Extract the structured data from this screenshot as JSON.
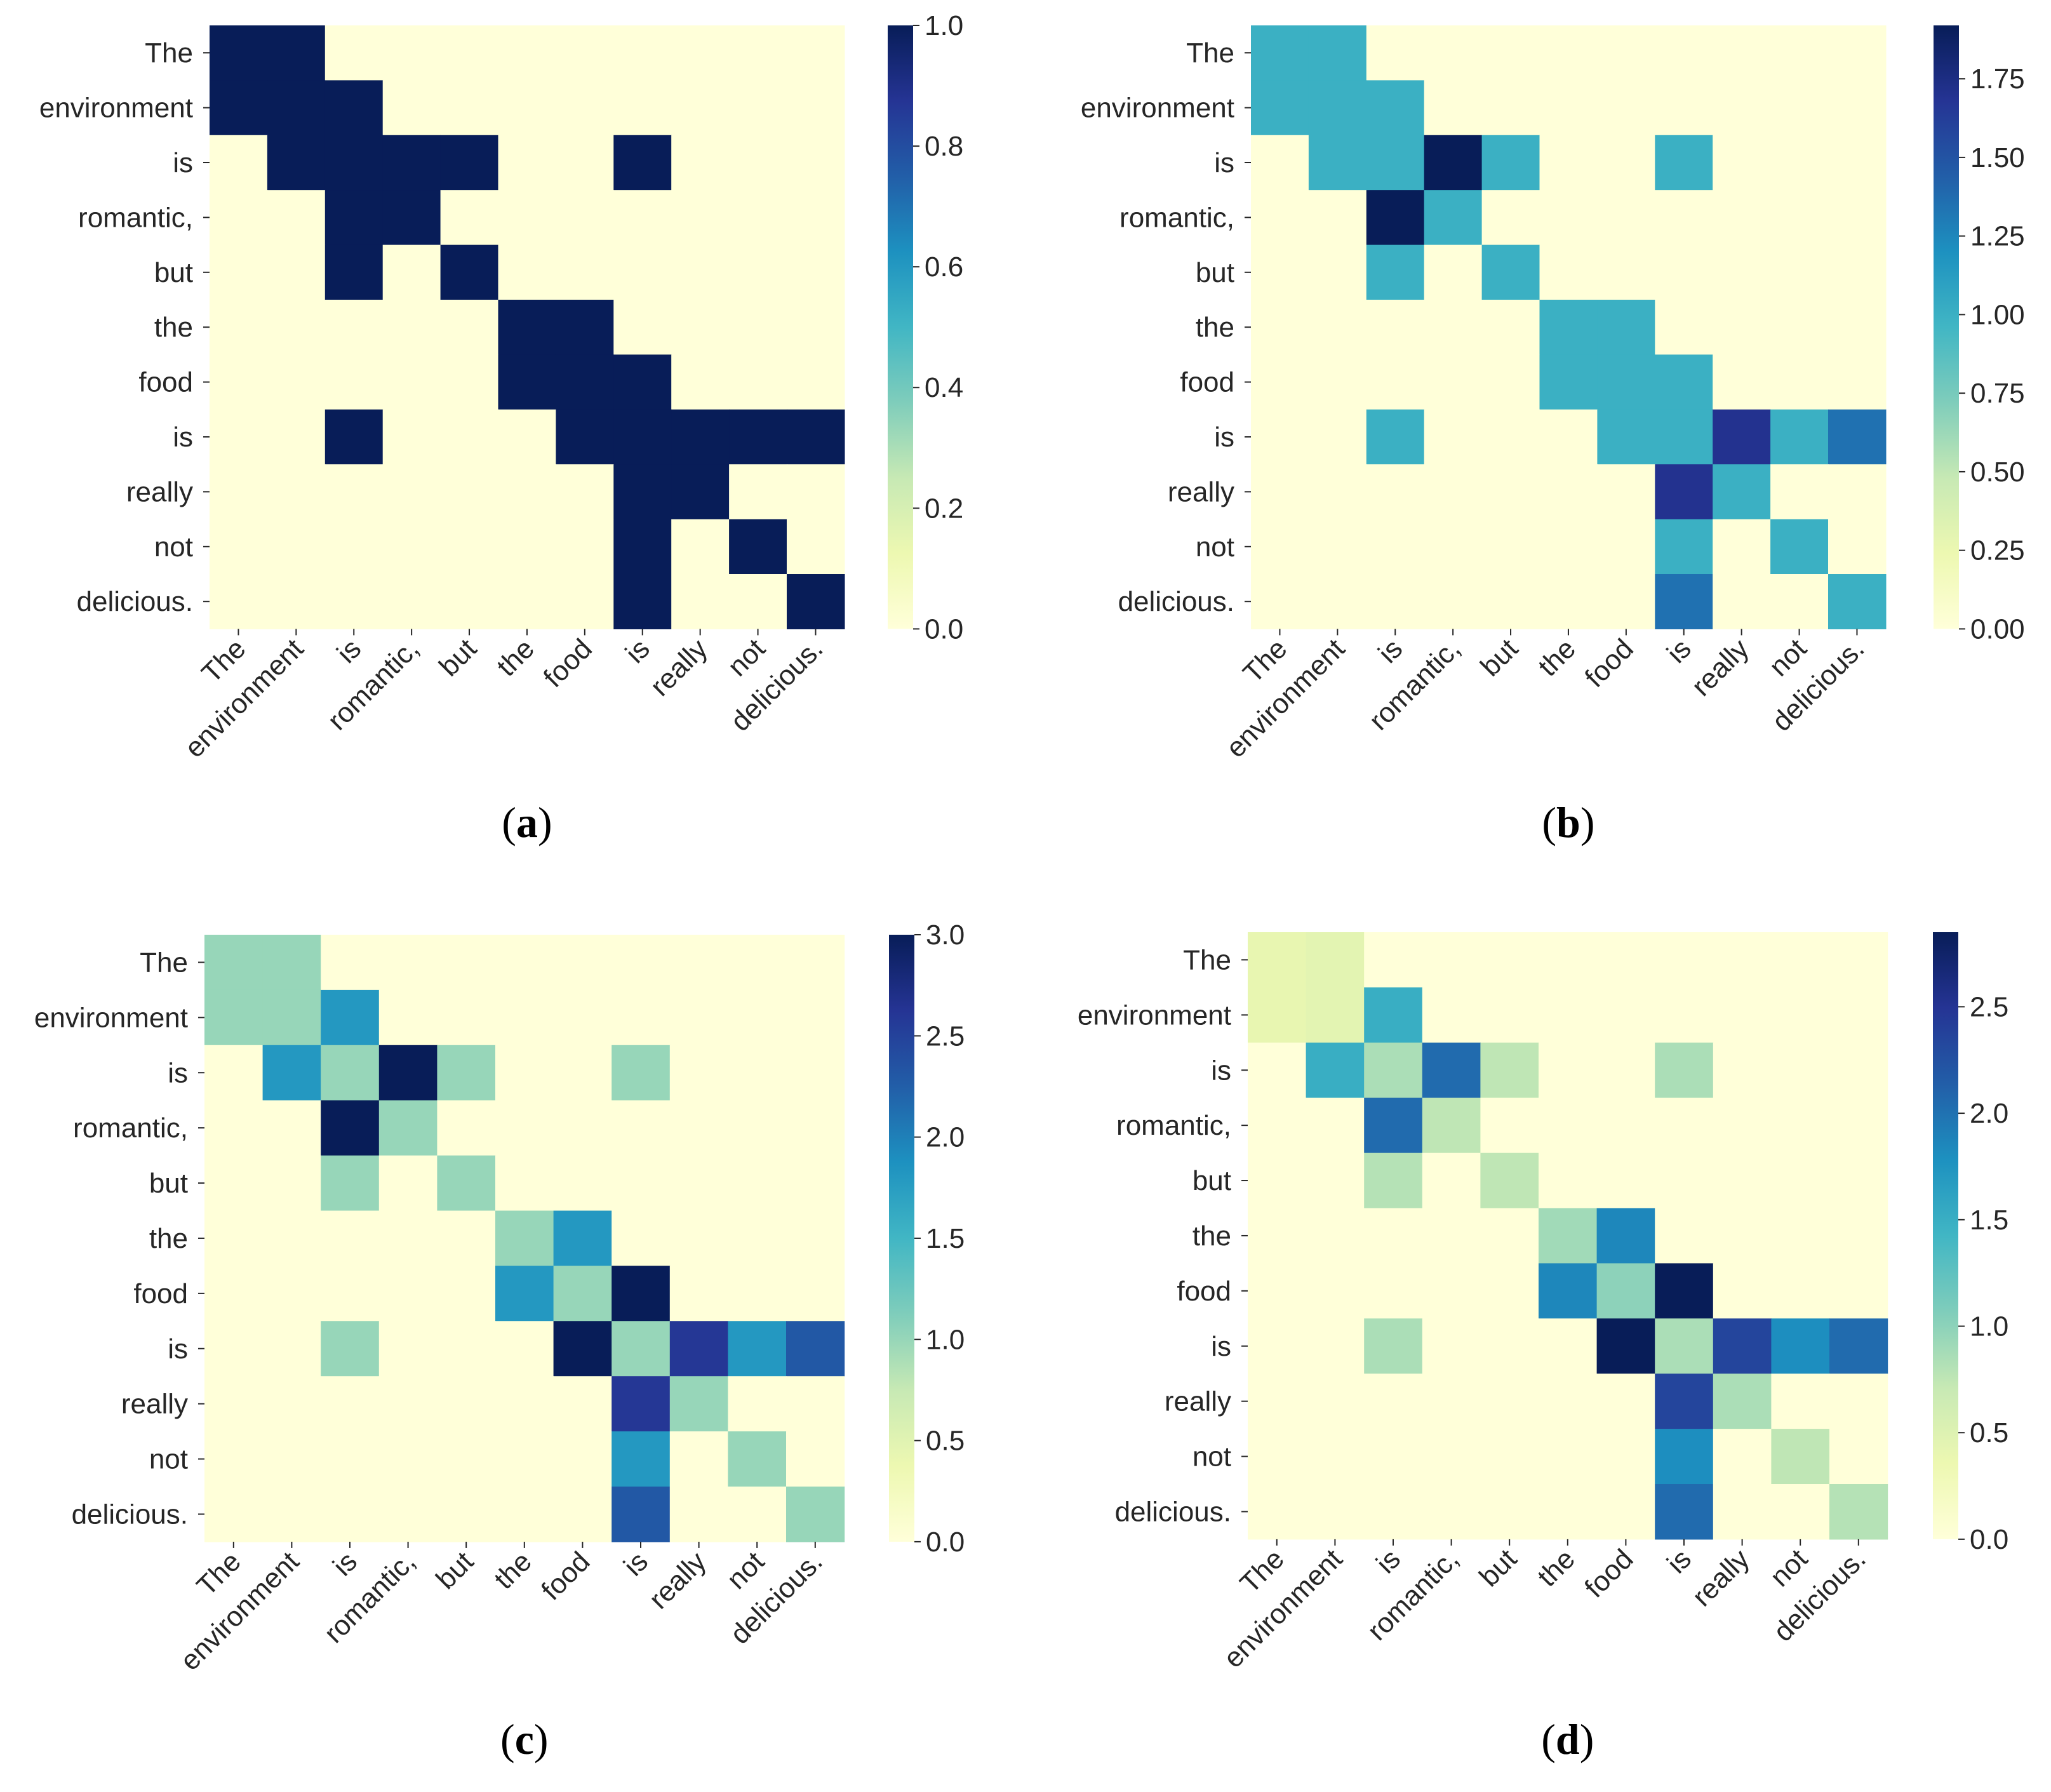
{
  "figure": {
    "panel_labels": [
      "(a)",
      "(b)",
      "(c)",
      "(d)"
    ]
  },
  "colormap": {
    "name": "YlGnBu",
    "stops": [
      "#ffffd9",
      "#edf8b1",
      "#c7e9b4",
      "#7fcdbb",
      "#41b6c4",
      "#1d91c0",
      "#225ea8",
      "#253494",
      "#081d58"
    ]
  },
  "chart_data": [
    {
      "type": "heatmap",
      "title": "(a)",
      "rows": [
        "The",
        "environment",
        "is",
        "romantic,",
        "but",
        "the",
        "food",
        "is",
        "really",
        "not",
        "delicious."
      ],
      "columns": [
        "The",
        "environment",
        "is",
        "romantic,",
        "but",
        "the",
        "food",
        "is",
        "really",
        "not",
        "delicious."
      ],
      "values": [
        [
          1,
          1,
          0,
          0,
          0,
          0,
          0,
          0,
          0,
          0,
          0
        ],
        [
          1,
          1,
          1,
          0,
          0,
          0,
          0,
          0,
          0,
          0,
          0
        ],
        [
          0,
          1,
          1,
          1,
          1,
          0,
          0,
          1,
          0,
          0,
          0
        ],
        [
          0,
          0,
          1,
          1,
          0,
          0,
          0,
          0,
          0,
          0,
          0
        ],
        [
          0,
          0,
          1,
          0,
          1,
          0,
          0,
          0,
          0,
          0,
          0
        ],
        [
          0,
          0,
          0,
          0,
          0,
          1,
          1,
          0,
          0,
          0,
          0
        ],
        [
          0,
          0,
          0,
          0,
          0,
          1,
          1,
          1,
          0,
          0,
          0
        ],
        [
          0,
          0,
          1,
          0,
          0,
          0,
          1,
          1,
          1,
          1,
          1
        ],
        [
          0,
          0,
          0,
          0,
          0,
          0,
          0,
          1,
          1,
          0,
          0
        ],
        [
          0,
          0,
          0,
          0,
          0,
          0,
          0,
          1,
          0,
          1,
          0
        ],
        [
          0,
          0,
          0,
          0,
          0,
          0,
          0,
          1,
          0,
          0,
          1
        ]
      ],
      "vmin": 0,
      "vmax": 1.0,
      "colorbar_ticks": [
        0.0,
        0.2,
        0.4,
        0.6,
        0.8,
        1.0
      ],
      "colorbar_tick_labels": [
        "0.0",
        "0.2",
        "0.4",
        "0.6",
        "0.8",
        "1.0"
      ]
    },
    {
      "type": "heatmap",
      "title": "(b)",
      "rows": [
        "The",
        "environment",
        "is",
        "romantic,",
        "but",
        "the",
        "food",
        "is",
        "really",
        "not",
        "delicious."
      ],
      "columns": [
        "The",
        "environment",
        "is",
        "romantic,",
        "but",
        "the",
        "food",
        "is",
        "really",
        "not",
        "delicious."
      ],
      "values": [
        [
          1,
          1,
          0,
          0,
          0,
          0,
          0,
          0,
          0,
          0,
          0
        ],
        [
          1,
          1,
          1,
          0,
          0,
          0,
          0,
          0,
          0,
          0,
          0
        ],
        [
          0,
          1,
          1,
          1.92,
          1,
          0,
          0,
          1,
          0,
          0,
          0
        ],
        [
          0,
          0,
          1.92,
          1,
          0,
          0,
          0,
          0,
          0,
          0,
          0
        ],
        [
          0,
          0,
          1,
          0,
          1,
          0,
          0,
          0,
          0,
          0,
          0
        ],
        [
          0,
          0,
          0,
          0,
          0,
          1,
          1,
          0,
          0,
          0,
          0
        ],
        [
          0,
          0,
          0,
          0,
          0,
          1,
          1,
          1,
          0,
          0,
          0
        ],
        [
          0,
          0,
          1,
          0,
          0,
          0,
          1,
          1,
          1.7,
          1,
          1.35
        ],
        [
          0,
          0,
          0,
          0,
          0,
          0,
          0,
          1.7,
          1,
          0,
          0
        ],
        [
          0,
          0,
          0,
          0,
          0,
          0,
          0,
          1,
          0,
          1,
          0
        ],
        [
          0,
          0,
          0,
          0,
          0,
          0,
          0,
          1.35,
          0,
          0,
          1
        ]
      ],
      "vmin": 0,
      "vmax": 1.92,
      "colorbar_ticks": [
        0.0,
        0.25,
        0.5,
        0.75,
        1.0,
        1.25,
        1.5,
        1.75
      ],
      "colorbar_tick_labels": [
        "0.00",
        "0.25",
        "0.50",
        "0.75",
        "1.00",
        "1.25",
        "1.50",
        "1.75"
      ]
    },
    {
      "type": "heatmap",
      "title": "(c)",
      "rows": [
        "The",
        "environment",
        "is",
        "romantic,",
        "but",
        "the",
        "food",
        "is",
        "really",
        "not",
        "delicious."
      ],
      "columns": [
        "The",
        "environment",
        "is",
        "romantic,",
        "but",
        "the",
        "food",
        "is",
        "really",
        "not",
        "delicious."
      ],
      "values": [
        [
          1,
          1,
          0,
          0,
          0,
          0,
          0,
          0,
          0,
          0,
          0
        ],
        [
          1,
          1,
          1.8,
          0,
          0,
          0,
          0,
          0,
          0,
          0,
          0
        ],
        [
          0,
          1.8,
          1,
          3,
          1,
          0,
          0,
          1,
          0,
          0,
          0
        ],
        [
          0,
          0,
          3,
          1,
          0,
          0,
          0,
          0,
          0,
          0,
          0
        ],
        [
          0,
          0,
          1,
          0,
          1,
          0,
          0,
          0,
          0,
          0,
          0
        ],
        [
          0,
          0,
          0,
          0,
          0,
          1,
          1.8,
          0,
          0,
          0,
          0
        ],
        [
          0,
          0,
          0,
          0,
          0,
          1.8,
          1,
          3,
          0,
          0,
          0
        ],
        [
          0,
          0,
          1,
          0,
          0,
          0,
          3,
          1,
          2.6,
          1.8,
          2.3
        ],
        [
          0,
          0,
          0,
          0,
          0,
          0,
          0,
          2.6,
          1,
          0,
          0
        ],
        [
          0,
          0,
          0,
          0,
          0,
          0,
          0,
          1.8,
          0,
          1,
          0
        ],
        [
          0,
          0,
          0,
          0,
          0,
          0,
          0,
          2.3,
          0,
          0,
          1
        ]
      ],
      "vmin": 0,
      "vmax": 3.0,
      "colorbar_ticks": [
        0.0,
        0.5,
        1.0,
        1.5,
        2.0,
        2.5,
        3.0
      ],
      "colorbar_tick_labels": [
        "0.0",
        "0.5",
        "1.0",
        "1.5",
        "2.0",
        "2.5",
        "3.0"
      ]
    },
    {
      "type": "heatmap",
      "title": "(d)",
      "rows": [
        "The",
        "environment",
        "is",
        "romantic,",
        "but",
        "the",
        "food",
        "is",
        "really",
        "not",
        "delicious."
      ],
      "columns": [
        "The",
        "environment",
        "is",
        "romantic,",
        "but",
        "the",
        "food",
        "is",
        "really",
        "not",
        "delicious."
      ],
      "values": [
        [
          0.4,
          0.45,
          0,
          0,
          0,
          0,
          0,
          0,
          0,
          0,
          0
        ],
        [
          0.4,
          0.45,
          1.5,
          0,
          0,
          0,
          0,
          0,
          0,
          0,
          0
        ],
        [
          0,
          1.5,
          0.85,
          2.05,
          0.75,
          0,
          0,
          0.85,
          0,
          0,
          0
        ],
        [
          0,
          0,
          2.05,
          0.75,
          0,
          0,
          0,
          0,
          0,
          0,
          0
        ],
        [
          0,
          0,
          0.8,
          0,
          0.75,
          0,
          0,
          0,
          0,
          0,
          0
        ],
        [
          0,
          0,
          0,
          0,
          0,
          0.9,
          1.85,
          0,
          0,
          0,
          0
        ],
        [
          0,
          0,
          0,
          0,
          0,
          1.85,
          1.0,
          2.85,
          0,
          0,
          0
        ],
        [
          0,
          0,
          0.85,
          0,
          0,
          0,
          2.85,
          0.85,
          2.35,
          1.8,
          2.05
        ],
        [
          0,
          0,
          0,
          0,
          0,
          0,
          0,
          2.35,
          0.85,
          0,
          0
        ],
        [
          0,
          0,
          0,
          0,
          0,
          0,
          0,
          1.8,
          0,
          0.75,
          0
        ],
        [
          0,
          0,
          0,
          0,
          0,
          0,
          0,
          2.05,
          0,
          0,
          0.8
        ]
      ],
      "vmin": 0,
      "vmax": 2.85,
      "colorbar_ticks": [
        0.0,
        0.5,
        1.0,
        1.5,
        2.0,
        2.5
      ],
      "colorbar_tick_labels": [
        "0.0",
        "0.5",
        "1.0",
        "1.5",
        "2.0",
        "2.5"
      ]
    }
  ]
}
